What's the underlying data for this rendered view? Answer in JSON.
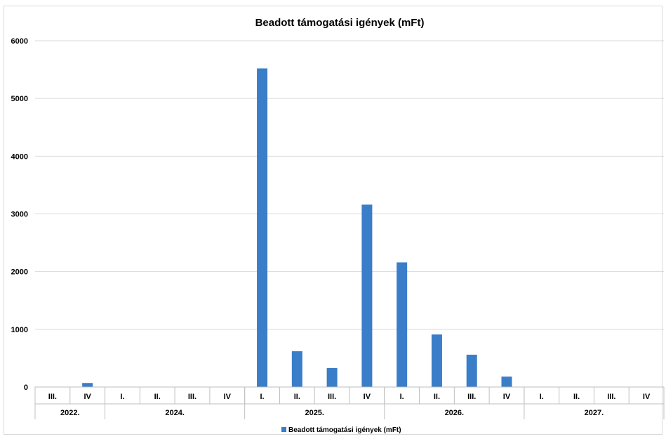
{
  "chart_data": {
    "type": "bar",
    "title": "Beadott támogatási igények (mFt)",
    "xlabel": "",
    "ylabel": "",
    "ylim": [
      0,
      6000
    ],
    "yticks": [
      "0",
      "1000",
      "2000",
      "3000",
      "4000",
      "5000",
      "6000"
    ],
    "grid": true,
    "legend_position": "bottom",
    "categories": [
      "III.",
      "IV",
      "I.",
      "II.",
      "III.",
      "IV",
      "I.",
      "II.",
      "III.",
      "IV",
      "I.",
      "II.",
      "III.",
      "IV",
      "I.",
      "II.",
      "III.",
      "IV"
    ],
    "groups": [
      {
        "label": "2022.",
        "count": 2
      },
      {
        "label": "2024.",
        "count": 4
      },
      {
        "label": "2025.",
        "count": 4
      },
      {
        "label": "2026.",
        "count": 4
      },
      {
        "label": "2027.",
        "count": 4
      }
    ],
    "series": [
      {
        "name": "Beadott támogatási igények (mFt)",
        "color": "#3a7dc9",
        "values": [
          0,
          70,
          0,
          0,
          0,
          0,
          5520,
          620,
          330,
          3160,
          2160,
          910,
          560,
          180,
          0,
          0,
          0,
          0
        ]
      }
    ]
  }
}
